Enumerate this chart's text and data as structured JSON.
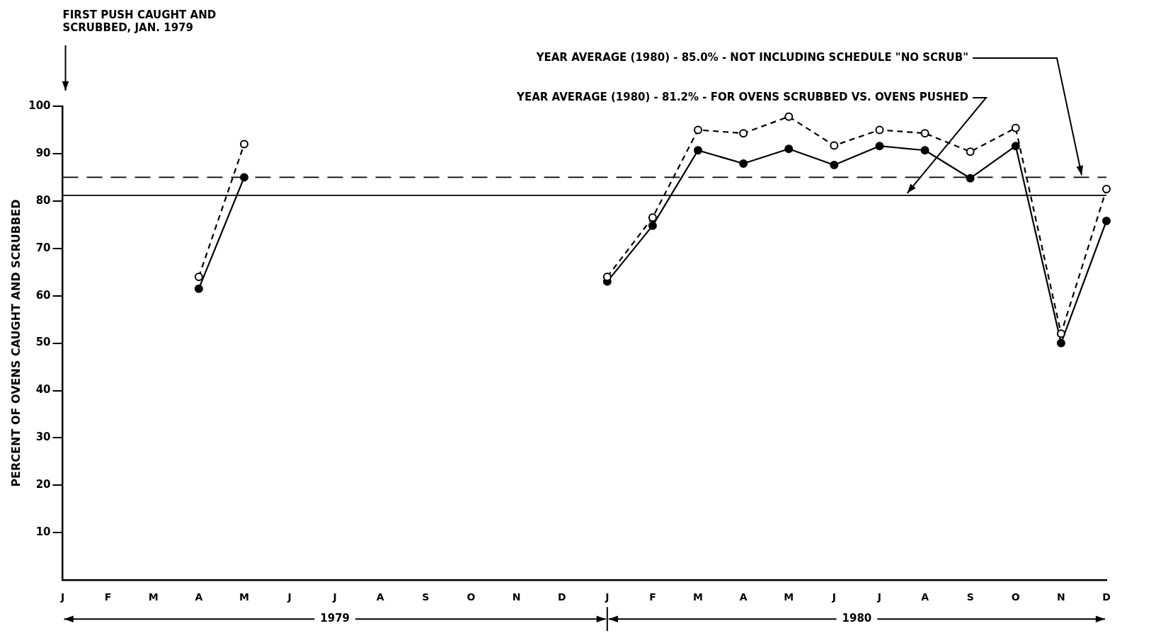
{
  "chart_data": {
    "type": "line",
    "categories": [
      "J",
      "F",
      "M",
      "A",
      "M",
      "J",
      "J",
      "A",
      "S",
      "O",
      "N",
      "D",
      "J",
      "F",
      "M",
      "A",
      "M",
      "J",
      "J",
      "A",
      "S",
      "O",
      "N",
      "D"
    ],
    "ylabel": "PERCENT OF OVENS CAUGHT AND SCRUBBED",
    "ylim": [
      0,
      100
    ],
    "yticks": [
      10,
      20,
      30,
      40,
      50,
      60,
      70,
      80,
      90,
      100
    ],
    "series": [
      {
        "color": "#000000",
        "line_style": "dashed",
        "values": [
          null,
          null,
          null,
          64,
          92,
          null,
          null,
          null,
          null,
          null,
          null,
          null,
          64,
          76.5,
          95,
          94.3,
          97.8,
          91.7,
          95,
          94.3,
          90.4,
          95.4,
          52,
          82.5
        ]
      },
      {
        "color": "#000000",
        "line_style": "solid",
        "values": [
          null,
          null,
          null,
          61.5,
          85,
          null,
          null,
          null,
          null,
          null,
          null,
          null,
          63,
          74.8,
          90.7,
          87.9,
          91,
          87.6,
          91.6,
          90.7,
          84.8,
          91.6,
          50,
          75.8
        ]
      }
    ],
    "ref_lines": [
      {
        "axis": "y",
        "value": 85.0,
        "label": "YEAR AVERAGE (1980) - 85.0% - NOT INCLUDING SCHEDULE \"NO SCRUB\"",
        "line_style": "dashed",
        "color": "#000000"
      },
      {
        "axis": "y",
        "value": 81.2,
        "label": "YEAR AVERAGE (1980) - 81.2% - FOR OVENS SCRUBBED VS. OVENS PUSHED",
        "line_style": "solid",
        "color": "#000000"
      }
    ],
    "annotations": [
      "FIRST PUSH CAUGHT AND SCRUBBED, JAN. 1979",
      "1979",
      "1980"
    ],
    "marker": "circle",
    "grid": false,
    "legend": false
  }
}
